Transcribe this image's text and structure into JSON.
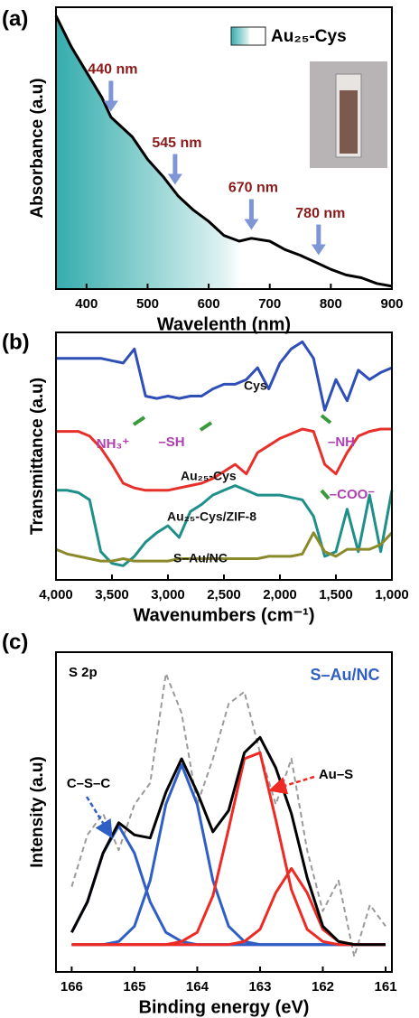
{
  "chart_data": [
    {
      "type": "line",
      "label": "(a)",
      "ylabel": "Absorbance (a.u)",
      "xlabel": "Wavelenth (nm)",
      "xlim": [
        350,
        900
      ],
      "xticks": [
        400,
        500,
        600,
        700,
        800,
        900
      ],
      "ylim": [
        0,
        1
      ],
      "x": [
        350,
        375,
        400,
        425,
        440,
        450,
        475,
        500,
        525,
        550,
        575,
        600,
        625,
        650,
        670,
        700,
        725,
        750,
        780,
        800,
        825,
        850,
        875,
        900
      ],
      "series": [
        {
          "name": "Au₂₅-Cys",
          "color": "#000000",
          "fill_color": "#2aa8a8",
          "values": [
            0.97,
            0.86,
            0.77,
            0.68,
            0.61,
            0.59,
            0.54,
            0.46,
            0.4,
            0.33,
            0.28,
            0.24,
            0.19,
            0.17,
            0.18,
            0.17,
            0.14,
            0.12,
            0.09,
            0.07,
            0.05,
            0.04,
            0.02,
            0.01
          ]
        }
      ],
      "annotations": [
        {
          "text": "440 nm",
          "x": 440,
          "y": 0.63,
          "color": "#8b1a1a"
        },
        {
          "text": "545 nm",
          "x": 545,
          "y": 0.37,
          "color": "#8b1a1a"
        },
        {
          "text": "670 nm",
          "x": 670,
          "y": 0.21,
          "color": "#8b1a1a"
        },
        {
          "text": "780 nm",
          "x": 780,
          "y": 0.12,
          "color": "#8b1a1a"
        }
      ]
    },
    {
      "type": "line",
      "label": "(b)",
      "ylabel": "Transmittance (a.u)",
      "xlabel": "Wavenumbers (cm⁻¹)",
      "xlim": [
        4000,
        1000
      ],
      "xticks": [
        {
          "value": 4000,
          "label": "4,000"
        },
        {
          "value": 3500,
          "label": "3,500"
        },
        {
          "value": 3000,
          "label": "3,000"
        },
        {
          "value": 2500,
          "label": "2,500"
        },
        {
          "value": 2000,
          "label": "2,000"
        },
        {
          "value": 1500,
          "label": "1,500"
        },
        {
          "value": 1000,
          "label": "1,000"
        }
      ],
      "ylim": [
        -0.05,
        1.0
      ],
      "x": [
        4000,
        3900,
        3800,
        3700,
        3600,
        3500,
        3400,
        3300,
        3200,
        3100,
        3000,
        2900,
        2800,
        2700,
        2600,
        2500,
        2400,
        2300,
        2200,
        2100,
        2000,
        1900,
        1800,
        1700,
        1600,
        1500,
        1400,
        1300,
        1200,
        1100,
        1000
      ],
      "series": [
        {
          "name": "Cys",
          "color": "#2f4fb8",
          "values": [
            0.89,
            0.89,
            0.89,
            0.89,
            0.89,
            0.88,
            0.87,
            0.93,
            0.73,
            0.72,
            0.73,
            0.72,
            0.73,
            0.73,
            0.76,
            0.78,
            0.78,
            0.8,
            0.85,
            0.76,
            0.87,
            0.93,
            0.96,
            0.89,
            0.67,
            0.8,
            0.71,
            0.84,
            0.8,
            0.83,
            0.85
          ]
        },
        {
          "name": "Au₂₅-Cys",
          "color": "#e8302a",
          "values": [
            0.58,
            0.58,
            0.58,
            0.56,
            0.51,
            0.44,
            0.36,
            0.34,
            0.33,
            0.33,
            0.33,
            0.34,
            0.35,
            0.36,
            0.38,
            0.41,
            0.44,
            0.4,
            0.49,
            0.52,
            0.55,
            0.57,
            0.59,
            0.58,
            0.44,
            0.4,
            0.49,
            0.56,
            0.58,
            0.59,
            0.59
          ]
        },
        {
          "name": "Au₂₅-Cys/ZIF-8",
          "color": "#1f8f8a",
          "values": [
            0.33,
            0.33,
            0.32,
            0.29,
            0.07,
            0.02,
            0.01,
            0.05,
            0.11,
            0.15,
            0.18,
            0.13,
            0.24,
            0.27,
            0.31,
            0.33,
            0.35,
            0.33,
            0.31,
            0.31,
            0.31,
            0.3,
            0.29,
            0.22,
            0.05,
            0.07,
            0.25,
            0.07,
            0.31,
            0.07,
            0.33
          ]
        },
        {
          "name": "S–Au/NC",
          "color": "#8a8a2a",
          "values": [
            0.08,
            0.06,
            0.05,
            0.04,
            0.03,
            0.03,
            0.04,
            0.03,
            0.03,
            0.03,
            0.03,
            0.04,
            0.04,
            0.04,
            0.04,
            0.04,
            0.04,
            0.04,
            0.04,
            0.05,
            0.05,
            0.05,
            0.06,
            0.15,
            0.07,
            0.05,
            0.08,
            0.08,
            0.08,
            0.1,
            0.15
          ]
        }
      ],
      "annotations": [
        {
          "text": "NH₃⁺",
          "color": "#b040b0"
        },
        {
          "text": "–SH",
          "color": "#b040b0"
        },
        {
          "text": "–NH",
          "color": "#b040b0"
        },
        {
          "text": "–COO⁻",
          "color": "#b040b0"
        }
      ]
    },
    {
      "type": "line",
      "label": "(c)",
      "ylabel": "Intensity (a.u)",
      "xlabel": "Binding energy (eV)",
      "xlim": [
        166.25,
        160.9
      ],
      "xticks": [
        166,
        165,
        164,
        163,
        162,
        161
      ],
      "ylim": [
        0,
        1.05
      ],
      "x": [
        166,
        165.75,
        165.5,
        165.25,
        165,
        164.75,
        164.5,
        164.25,
        164,
        163.75,
        163.5,
        163.25,
        163,
        162.75,
        162.5,
        162.25,
        162,
        161.75,
        161.5,
        161.25,
        161
      ],
      "series": [
        {
          "color": "#9a9a9a",
          "dash": true,
          "values": [
            0.28,
            0.45,
            0.52,
            0.4,
            0.55,
            0.62,
            0.98,
            0.85,
            0.55,
            0.7,
            0.88,
            0.92,
            0.72,
            0.55,
            0.7,
            0.4,
            0.2,
            0.3,
            0.05,
            0.22,
            0.15
          ]
        },
        {
          "color": "#7030a0",
          "values": [
            0.09,
            0.09,
            0.09,
            0.09,
            0.09,
            0.09,
            0.09,
            0.09,
            0.09,
            0.09,
            0.09,
            0.09,
            0.09,
            0.09,
            0.09,
            0.09,
            0.09,
            0.09,
            0.09,
            0.09,
            0.09
          ]
        },
        {
          "color": "#2f5fc4",
          "values": [
            0.13,
            0.23,
            0.39,
            0.48,
            0.39,
            0.23,
            0.13,
            0.1,
            0.09,
            0.09,
            0.09,
            0.09,
            0.09,
            0.09,
            0.09,
            0.09,
            0.09,
            0.09,
            0.09,
            0.09,
            0.09
          ]
        },
        {
          "color": "#2f5fc4",
          "values": [
            0.09,
            0.09,
            0.09,
            0.1,
            0.15,
            0.3,
            0.55,
            0.68,
            0.55,
            0.3,
            0.15,
            0.1,
            0.09,
            0.09,
            0.09,
            0.09,
            0.09,
            0.09,
            0.09,
            0.09,
            0.09
          ]
        },
        {
          "color": "#ee2a24",
          "values": [
            0.09,
            0.09,
            0.09,
            0.09,
            0.09,
            0.09,
            0.09,
            0.1,
            0.13,
            0.25,
            0.47,
            0.7,
            0.72,
            0.5,
            0.27,
            0.14,
            0.1,
            0.09,
            0.09,
            0.09,
            0.09
          ]
        },
        {
          "color": "#ee2a24",
          "values": [
            0.09,
            0.09,
            0.09,
            0.09,
            0.09,
            0.09,
            0.09,
            0.09,
            0.09,
            0.09,
            0.09,
            0.1,
            0.14,
            0.26,
            0.34,
            0.26,
            0.14,
            0.1,
            0.09,
            0.09,
            0.09
          ]
        },
        {
          "color": "#000000",
          "values": [
            0.13,
            0.23,
            0.39,
            0.49,
            0.45,
            0.44,
            0.59,
            0.7,
            0.59,
            0.46,
            0.53,
            0.72,
            0.77,
            0.67,
            0.52,
            0.31,
            0.15,
            0.1,
            0.09,
            0.09,
            0.09
          ]
        }
      ],
      "annotations": [
        {
          "text": "S 2p",
          "color": "#000000"
        },
        {
          "text": "S–Au/NC",
          "color": "#2f5fc4"
        },
        {
          "text": "C–S–C",
          "color": "#000000"
        },
        {
          "text": "Au–S",
          "color": "#000000"
        }
      ]
    }
  ]
}
